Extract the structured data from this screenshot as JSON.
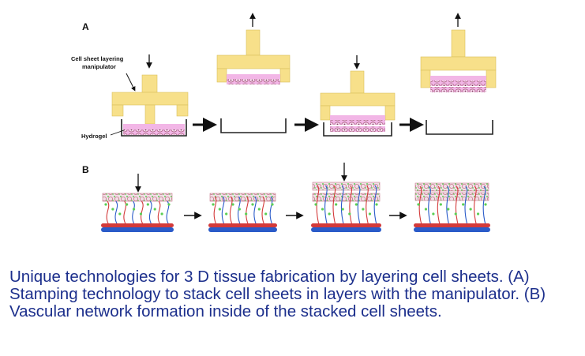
{
  "figure": {
    "panel_a_label": "A",
    "panel_b_label": "B",
    "manipulator_label_line1": "Cell sheet layering",
    "manipulator_label_line2": "manipulator",
    "hydrogel_label": "Hydrogel"
  },
  "caption": "Unique technologies for 3 D tissue fabrication by layering cell sheets. (A) Stamping technology to stack cell sheets in layers with the manipulator. (B) Vascular network formation inside of the stacked cell sheets.",
  "colors": {
    "manipulator": "#f7e08a",
    "manipulator_edge": "#d9c05c",
    "cell_sheet": "#f2b6e6",
    "cell_outline": "#a55a7a",
    "dish": "#222222",
    "artery": "#d33a3a",
    "vein": "#2a5bc9",
    "capillary_green": "#5ccf55",
    "caption_text": "#1c2f8c"
  }
}
